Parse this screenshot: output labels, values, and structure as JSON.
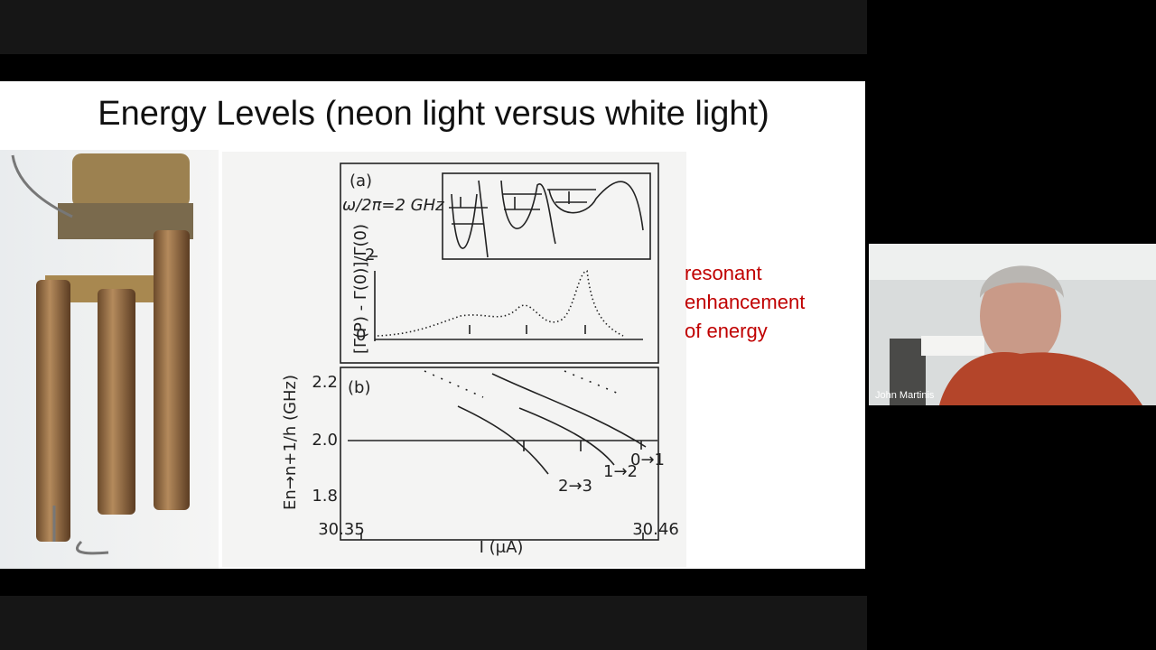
{
  "slide": {
    "title": "Energy Levels (neon light versus white light)",
    "annotation": [
      "resonant",
      "enhancement",
      "of energy"
    ],
    "figure": {
      "panel_a": {
        "label": "(a)",
        "inset_label": "ω/2π=2 GHz",
        "y_label": "[Γ(P) - Γ(0)]/Γ(0)",
        "yticks": [
          "2",
          "0"
        ]
      },
      "panel_b": {
        "label": "(b)",
        "y_label": "En→n+1/h (GHz)",
        "yticks": [
          "2.2",
          "2.0",
          "1.8"
        ],
        "transitions": [
          "0→1",
          "1→2",
          "2→3"
        ]
      },
      "x_label": "I (μA)",
      "xticks": [
        "30.35",
        "30.46"
      ]
    }
  },
  "participant": {
    "name": "John Martinis"
  }
}
